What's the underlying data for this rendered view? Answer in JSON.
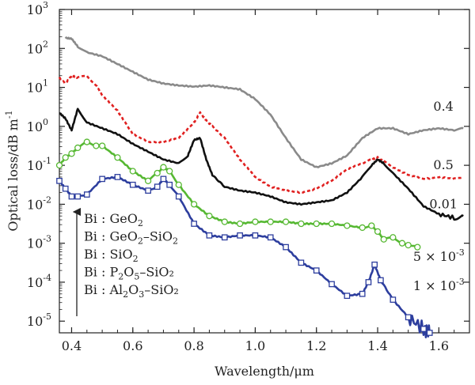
{
  "chart_data": {
    "type": "line",
    "title": "",
    "xlabel": "Wavelength/μm",
    "ylabel": "Optical loss/dB m",
    "ylabel_exponent": "-1",
    "xlim": [
      0.36,
      1.7
    ],
    "ylim_log10": [
      -5.3,
      3
    ],
    "x_ticks": [
      "0.4",
      "0.6",
      "0.8",
      "1.0",
      "1.2",
      "1.4",
      "1.6"
    ],
    "y_ticks": [
      {
        "base": "10",
        "exp": "3"
      },
      {
        "base": "10",
        "exp": "2"
      },
      {
        "base": "10",
        "exp": "1"
      },
      {
        "base": "10",
        "exp": "0"
      },
      {
        "base": "10",
        "exp": "-1"
      },
      {
        "base": "10",
        "exp": "-2"
      },
      {
        "base": "10",
        "exp": "-3"
      },
      {
        "base": "10",
        "exp": "-4"
      },
      {
        "base": "10",
        "exp": "-5"
      }
    ],
    "series": [
      {
        "name": "Bi:GeO2",
        "label": "0.4",
        "color": "#8a8a8a",
        "dash": "solid",
        "marker": "none",
        "x": [
          0.38,
          0.4,
          0.42,
          0.45,
          0.5,
          0.55,
          0.6,
          0.65,
          0.7,
          0.75,
          0.8,
          0.85,
          0.9,
          0.95,
          1.0,
          1.05,
          1.1,
          1.15,
          1.2,
          1.25,
          1.3,
          1.35,
          1.4,
          1.45,
          1.5,
          1.55,
          1.6,
          1.65,
          1.68
        ],
        "y_log10": [
          2.27,
          2.25,
          2.05,
          1.9,
          1.8,
          1.6,
          1.4,
          1.2,
          1.1,
          1.05,
          1.02,
          1.05,
          1.0,
          0.95,
          0.7,
          0.3,
          -0.3,
          -0.85,
          -1.05,
          -0.95,
          -0.75,
          -0.3,
          -0.05,
          -0.05,
          -0.2,
          -0.1,
          -0.05,
          -0.1,
          -0.05
        ],
        "label_x": 1.615,
        "label_y_log10": 0.4
      },
      {
        "name": "Bi:GeO2-SiO2",
        "label": "0.5",
        "color": "#e02020",
        "dash": "dashed",
        "marker": "none",
        "x": [
          0.36,
          0.38,
          0.4,
          0.42,
          0.45,
          0.48,
          0.5,
          0.55,
          0.6,
          0.65,
          0.7,
          0.75,
          0.8,
          0.82,
          0.84,
          0.86,
          0.9,
          0.95,
          1.0,
          1.05,
          1.1,
          1.15,
          1.2,
          1.25,
          1.3,
          1.35,
          1.38,
          1.4,
          1.42,
          1.45,
          1.5,
          1.55,
          1.6,
          1.65,
          1.68
        ],
        "y_log10": [
          1.25,
          1.1,
          1.3,
          1.25,
          1.3,
          1.05,
          0.8,
          0.4,
          -0.2,
          -0.4,
          -0.4,
          -0.3,
          0.1,
          0.35,
          0.15,
          0.0,
          -0.3,
          -0.85,
          -1.3,
          -1.55,
          -1.65,
          -1.7,
          -1.6,
          -1.4,
          -1.1,
          -0.95,
          -0.85,
          -0.8,
          -0.9,
          -1.05,
          -1.25,
          -1.35,
          -1.3,
          -1.35,
          -1.3
        ],
        "label_x": 1.615,
        "label_y_log10": -1.1
      },
      {
        "name": "Bi:SiO2",
        "label": "0.01",
        "color": "#111111",
        "dash": "solid",
        "marker": "none",
        "x": [
          0.36,
          0.38,
          0.4,
          0.42,
          0.45,
          0.5,
          0.55,
          0.6,
          0.65,
          0.7,
          0.75,
          0.78,
          0.8,
          0.82,
          0.84,
          0.86,
          0.9,
          0.95,
          1.0,
          1.05,
          1.1,
          1.15,
          1.2,
          1.25,
          1.3,
          1.35,
          1.38,
          1.4,
          1.42,
          1.45,
          1.5,
          1.55,
          1.6,
          1.65,
          1.68
        ],
        "y_log10": [
          0.35,
          0.2,
          -0.1,
          0.45,
          0.1,
          -0.05,
          -0.2,
          -0.45,
          -0.65,
          -0.85,
          -0.95,
          -0.75,
          -0.35,
          -0.3,
          -0.85,
          -1.25,
          -1.55,
          -1.65,
          -1.7,
          -1.8,
          -1.95,
          -2.0,
          -1.95,
          -1.9,
          -1.7,
          -1.3,
          -1.0,
          -0.85,
          -0.95,
          -1.2,
          -1.6,
          -2.05,
          -2.25,
          -2.35,
          -2.3
        ],
        "label_x": 1.615,
        "label_y_log10": -2.1
      },
      {
        "name": "Bi:P2O5-SiO2",
        "label": "5 × 10",
        "label_exp": "-3",
        "color": "#56b832",
        "dash": "solid",
        "marker": "circle",
        "x": [
          0.36,
          0.38,
          0.4,
          0.42,
          0.45,
          0.48,
          0.5,
          0.55,
          0.6,
          0.65,
          0.68,
          0.7,
          0.72,
          0.75,
          0.8,
          0.85,
          0.9,
          0.95,
          1.0,
          1.05,
          1.1,
          1.15,
          1.2,
          1.25,
          1.3,
          1.35,
          1.38,
          1.4,
          1.42,
          1.45,
          1.48,
          1.5,
          1.53
        ],
        "y_log10": [
          -1.0,
          -0.8,
          -0.7,
          -0.55,
          -0.4,
          -0.5,
          -0.5,
          -0.8,
          -1.15,
          -1.4,
          -1.2,
          -1.05,
          -1.15,
          -1.5,
          -2.0,
          -2.3,
          -2.45,
          -2.5,
          -2.45,
          -2.45,
          -2.45,
          -2.5,
          -2.5,
          -2.5,
          -2.55,
          -2.6,
          -2.55,
          -2.7,
          -2.9,
          -2.85,
          -3.0,
          -3.05,
          -3.1
        ],
        "label_x": 1.6,
        "label_y_log10": -3.45
      },
      {
        "name": "Bi:Al2O3-SiO2",
        "label": "1 × 10",
        "label_exp": "-3",
        "color": "#2d3e9e",
        "dash": "solid",
        "marker": "square",
        "x": [
          0.36,
          0.38,
          0.4,
          0.42,
          0.45,
          0.5,
          0.55,
          0.6,
          0.65,
          0.68,
          0.7,
          0.72,
          0.75,
          0.8,
          0.85,
          0.9,
          0.95,
          1.0,
          1.05,
          1.1,
          1.15,
          1.2,
          1.25,
          1.3,
          1.35,
          1.37,
          1.39,
          1.41,
          1.45,
          1.5,
          1.55,
          1.57
        ],
        "y_log10": [
          -1.4,
          -1.6,
          -1.8,
          -1.8,
          -1.75,
          -1.35,
          -1.3,
          -1.5,
          -1.65,
          -1.55,
          -1.35,
          -1.5,
          -1.8,
          -2.5,
          -2.8,
          -2.85,
          -2.8,
          -2.8,
          -2.85,
          -3.1,
          -3.5,
          -3.7,
          -4.05,
          -4.35,
          -4.3,
          -4.0,
          -3.55,
          -3.95,
          -4.45,
          -4.9,
          -5.2,
          -5.3
        ],
        "label_x": 1.6,
        "label_y_log10": -4.2
      }
    ],
    "legend": {
      "placement": "bottom-left",
      "entries": [
        {
          "prefix": "Bi : GeO",
          "sub1": "2",
          "mid": "",
          "sub2": "",
          "tail": ""
        },
        {
          "prefix": "Bi : GeO",
          "sub1": "2",
          "mid": "–SiO",
          "sub2": "2",
          "tail": ""
        },
        {
          "prefix": "Bi : SiO",
          "sub1": "2",
          "mid": "",
          "sub2": "",
          "tail": ""
        },
        {
          "prefix": "Bi : P",
          "sub1": "2",
          "mid": "O",
          "sub2": "5",
          "tail": "–SiO₂"
        },
        {
          "prefix": "Bi : Al",
          "sub1": "2",
          "mid": "O",
          "sub2": "3",
          "tail": "–SiO₂"
        }
      ]
    }
  }
}
